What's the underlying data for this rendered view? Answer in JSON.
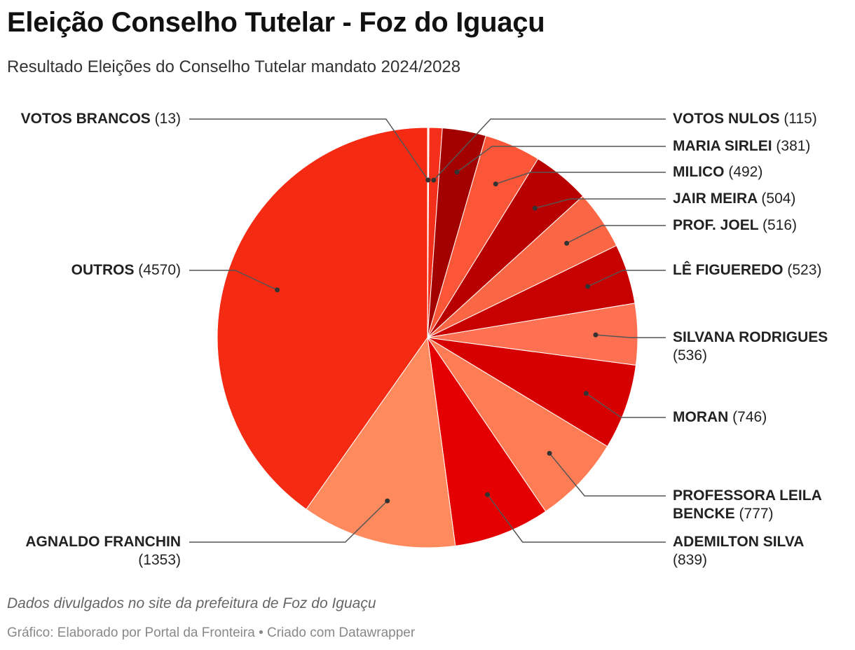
{
  "title": "Eleição Conselho Tutelar - Foz do Iguaçu",
  "subtitle": "Resultado Eleições do Conselho Tutelar mandato 2024/2028",
  "notes": "Dados divulgados no site da prefeitura de Foz do Iguaçu",
  "credit": "Gráfico: Elaborado por Portal da Fronteira • Criado com Datawrapper",
  "chart_data": {
    "type": "pie",
    "slices": [
      {
        "name": "VOTOS BRANCOS",
        "value": 13,
        "color": "#fef0ea"
      },
      {
        "name": "VOTOS NULOS",
        "value": 115,
        "color": "#f4301a"
      },
      {
        "name": "MARIA SIRLEI",
        "value": 381,
        "color": "#a30000"
      },
      {
        "name": "MILICO",
        "value": 492,
        "color": "#fa5637"
      },
      {
        "name": "JAIR MEIRA",
        "value": 504,
        "color": "#b80000"
      },
      {
        "name": "PROF. JOEL",
        "value": 516,
        "color": "#fb6745"
      },
      {
        "name": "LÊ FIGUEREDO",
        "value": 523,
        "color": "#c70000"
      },
      {
        "name": "SILVANA RODRIGUES",
        "value": 536,
        "color": "#fd7052"
      },
      {
        "name": "MORAN",
        "value": 746,
        "color": "#d60000"
      },
      {
        "name": "PROFESSORA LEILA BENCKE",
        "value": 777,
        "color": "#ff7c55"
      },
      {
        "name": "ADEMILTON SILVA",
        "value": 839,
        "color": "#e40000"
      },
      {
        "name": "AGNALDO FRANCHIN",
        "value": 1353,
        "color": "#ff8a5e"
      },
      {
        "name": "OUTROS",
        "value": 4570,
        "color": "#f52a12"
      }
    ]
  }
}
